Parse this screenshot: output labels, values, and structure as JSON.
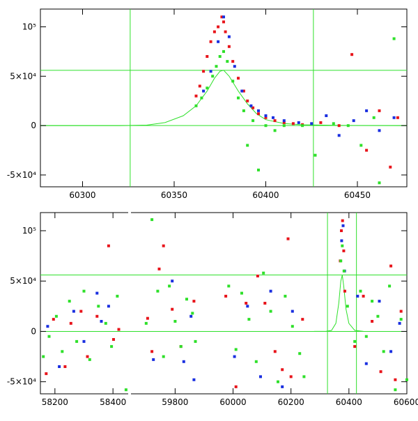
{
  "colors": {
    "red": "#e8141b",
    "blue": "#1a2fe0",
    "green": "#2ee02a",
    "frame": "#000000"
  },
  "chart_data": [
    {
      "type": "scatter",
      "title": "",
      "xlabel": "",
      "ylabel": "",
      "xlim": [
        60277,
        60477
      ],
      "ylim": [
        -62000,
        118000
      ],
      "grid": false,
      "legend": "none",
      "x_ticks": [
        "60300",
        "60350",
        "60400",
        "60450"
      ],
      "x_tick_values": [
        60300,
        60350,
        60400,
        60450
      ],
      "y_ticks": [
        "-5×10⁴",
        "0",
        "5×10⁴",
        "10⁵"
      ],
      "y_tick_values": [
        -50000,
        0,
        50000,
        100000
      ],
      "reference_lines": {
        "vertical": [
          60326,
          60426
        ],
        "horizontal": [
          0,
          56000
        ]
      },
      "model_curve": {
        "color": "green",
        "x": [
          60277,
          60320,
          60335,
          60345,
          60355,
          60362,
          60368,
          60372,
          60375,
          60377,
          60380,
          60385,
          60390,
          60395,
          60400,
          60410,
          60420,
          60440,
          60477
        ],
        "y": [
          0,
          0,
          500,
          3000,
          10000,
          20000,
          35000,
          48000,
          55000,
          56000,
          50000,
          35000,
          22000,
          12000,
          6000,
          2000,
          800,
          200,
          0
        ]
      },
      "series": [
        {
          "name": "red",
          "x": [
            60362,
            60364,
            60366,
            60368,
            60370,
            60372,
            60374,
            60376,
            60377,
            60378,
            60380,
            60382,
            60385,
            60388,
            60390,
            60393,
            60396,
            60400,
            60405,
            60410,
            60415,
            60420,
            60430,
            60440,
            60447,
            60455,
            60462,
            60468,
            60472
          ],
          "y": [
            30000,
            40000,
            55000,
            70000,
            85000,
            95000,
            100000,
            110000,
            105000,
            95000,
            80000,
            65000,
            48000,
            35000,
            25000,
            18000,
            12000,
            8000,
            5000,
            3000,
            2000,
            1000,
            3000,
            0,
            72000,
            -25000,
            15000,
            -42000,
            8000
          ]
        },
        {
          "name": "blue",
          "x": [
            60366,
            60370,
            60374,
            60377,
            60380,
            60383,
            60387,
            60392,
            60396,
            60400,
            60404,
            60410,
            60418,
            60425,
            60433,
            60440,
            60448,
            60455,
            60462,
            60470
          ],
          "y": [
            35000,
            55000,
            85000,
            110000,
            90000,
            60000,
            35000,
            20000,
            15000,
            10000,
            8000,
            5000,
            3000,
            2000,
            10000,
            -10000,
            5000,
            15000,
            -5000,
            8000
          ]
        },
        {
          "name": "green",
          "x": [
            60362,
            60365,
            60368,
            60371,
            60373,
            60375,
            60377,
            60379,
            60382,
            60385,
            60388,
            60390,
            60393,
            60396,
            60400,
            60405,
            60410,
            60420,
            60427,
            60437,
            60445,
            60452,
            60459,
            60462,
            60470
          ],
          "y": [
            20000,
            28000,
            38000,
            50000,
            60000,
            70000,
            75000,
            65000,
            45000,
            28000,
            15000,
            -20000,
            5000,
            -45000,
            0,
            -5000,
            0,
            0,
            -30000,
            2000,
            0,
            -20000,
            8000,
            -58000,
            88000
          ]
        }
      ]
    },
    {
      "type": "scatter",
      "title": "",
      "xlabel": "",
      "ylabel": "",
      "x_ticks": [
        "58200",
        "58400",
        "59800",
        "60000",
        "60200",
        "60400",
        "60600"
      ],
      "x_tick_values": [
        58200,
        58400,
        59800,
        60000,
        60200,
        60400,
        60600
      ],
      "x_segments": [
        [
          58150,
          58450
        ],
        [
          59650,
          60600
        ]
      ],
      "ylim": [
        -62000,
        118000
      ],
      "grid": false,
      "legend": "none",
      "y_ticks": [
        "-5×10⁴",
        "0",
        "5×10⁴",
        "10⁵"
      ],
      "y_tick_values": [
        -50000,
        0,
        50000,
        100000
      ],
      "reference_lines": {
        "vertical": [
          60326,
          60426
        ],
        "horizontal": [
          0,
          56000
        ]
      },
      "model_curve": {
        "color": "green",
        "x": [
          60280,
          60320,
          60340,
          60355,
          60365,
          60372,
          60377,
          60382,
          60390,
          60400,
          60420,
          60450
        ],
        "y": [
          0,
          0,
          1000,
          8000,
          28000,
          50000,
          56000,
          45000,
          22000,
          8000,
          1000,
          0
        ]
      },
      "series": [
        {
          "name": "red",
          "x": [
            58170,
            58195,
            58235,
            58255,
            58290,
            58312,
            58345,
            58385,
            58402,
            58420,
            59705,
            59720,
            59745,
            59760,
            59790,
            59820,
            59865,
            59975,
            60010,
            60045,
            60085,
            60110,
            60145,
            60170,
            60190,
            60200,
            60240,
            60370,
            60374,
            60378,
            60382,
            60386,
            60420,
            60450,
            60480,
            60510,
            60545,
            60560,
            60580
          ],
          "y": [
            -42000,
            12000,
            -35000,
            8000,
            20000,
            -25000,
            15000,
            85000,
            -8000,
            2000,
            13000,
            -20000,
            62000,
            85000,
            22000,
            -15000,
            30000,
            35000,
            -55000,
            28000,
            55000,
            28000,
            -20000,
            -38000,
            92000,
            -45000,
            12000,
            70000,
            100000,
            110000,
            80000,
            40000,
            -15000,
            35000,
            10000,
            -40000,
            65000,
            -48000,
            20000
          ]
        },
        {
          "name": "blue",
          "x": [
            58175,
            58215,
            58265,
            58300,
            58345,
            58360,
            58385,
            59725,
            59790,
            59830,
            59855,
            59865,
            60005,
            60050,
            60095,
            60130,
            60170,
            60205,
            60375,
            60380,
            60385,
            60430,
            60460,
            60505,
            60545,
            60575
          ],
          "y": [
            5000,
            -35000,
            20000,
            -10000,
            38000,
            10000,
            25000,
            -28000,
            50000,
            -30000,
            15000,
            -48000,
            -25000,
            25000,
            -45000,
            40000,
            -55000,
            20000,
            90000,
            105000,
            60000,
            35000,
            -32000,
            30000,
            -20000,
            8000
          ]
        },
        {
          "name": "green",
          "x": [
            58160,
            58180,
            58205,
            58225,
            58250,
            58275,
            58300,
            58320,
            58350,
            58375,
            58395,
            58415,
            58445,
            59700,
            59720,
            59740,
            59760,
            59780,
            59800,
            59820,
            59840,
            59860,
            59870,
            59985,
            60010,
            60030,
            60055,
            60080,
            60105,
            60130,
            60155,
            60180,
            60205,
            60230,
            60245,
            60372,
            60377,
            60383,
            60395,
            60420,
            60440,
            60460,
            60480,
            60500,
            60520,
            60540,
            60560,
            60580,
            60600
          ],
          "y": [
            -25000,
            -5000,
            15000,
            -20000,
            30000,
            -10000,
            40000,
            -28000,
            25000,
            8000,
            -15000,
            35000,
            -58000,
            8000,
            111000,
            40000,
            -25000,
            45000,
            10000,
            -15000,
            32000,
            18000,
            -10000,
            45000,
            -18000,
            38000,
            12000,
            -30000,
            58000,
            20000,
            -50000,
            35000,
            5000,
            -22000,
            -45000,
            70000,
            85000,
            60000,
            25000,
            -10000,
            40000,
            -5000,
            30000,
            15000,
            -20000,
            45000,
            -58000,
            12000,
            -48000
          ]
        }
      ]
    }
  ]
}
